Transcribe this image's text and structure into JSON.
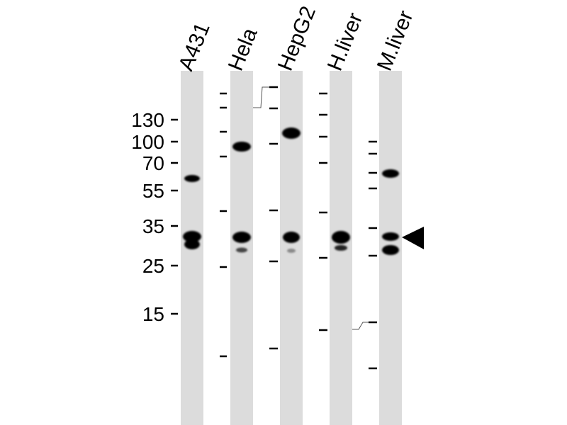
{
  "lanes": [
    {
      "label": "A431"
    },
    {
      "label": "Hela"
    },
    {
      "label": "HepG2"
    },
    {
      "label": "H.liver"
    },
    {
      "label": "M.liver"
    }
  ],
  "marker_labels": [
    "130",
    "100",
    "70",
    "55",
    "35",
    "25",
    "15"
  ],
  "arrow_icon": "left-pointing-triangle",
  "colors": {
    "lane": "#dcdcdc",
    "band": "#000000"
  }
}
